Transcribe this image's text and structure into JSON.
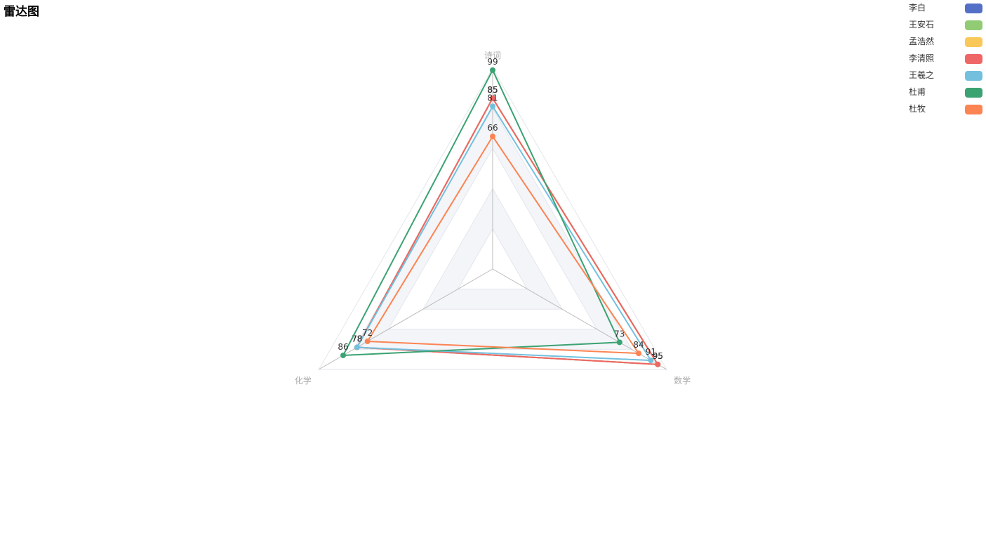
{
  "title": "雷达图",
  "chart_data": {
    "type": "radar",
    "title": "雷达图",
    "indicators": [
      {
        "name": "诗词",
        "max": 100
      },
      {
        "name": "数学",
        "max": 100
      },
      {
        "name": "化学",
        "max": 100
      }
    ],
    "series": [
      {
        "name": "李白",
        "color": "#5470c6",
        "values": [
          85,
          95,
          78
        ]
      },
      {
        "name": "王安石",
        "color": "#91cc75",
        "values": [
          85,
          95,
          78
        ]
      },
      {
        "name": "孟浩然",
        "color": "#fac858",
        "values": [
          85,
          95,
          78
        ]
      },
      {
        "name": "李清照",
        "color": "#ee6666",
        "values": [
          85,
          95,
          78
        ]
      },
      {
        "name": "王羲之",
        "color": "#73c0de",
        "values": [
          81,
          91,
          78
        ]
      },
      {
        "name": "杜甫",
        "color": "#3ba272",
        "values": [
          99,
          73,
          86
        ]
      },
      {
        "name": "杜牧",
        "color": "#fc8452",
        "values": [
          66,
          84,
          72
        ]
      }
    ],
    "legend_position": "top-right",
    "split_area_colors": [
      "#ffffff",
      "#f3f5f9"
    ]
  }
}
